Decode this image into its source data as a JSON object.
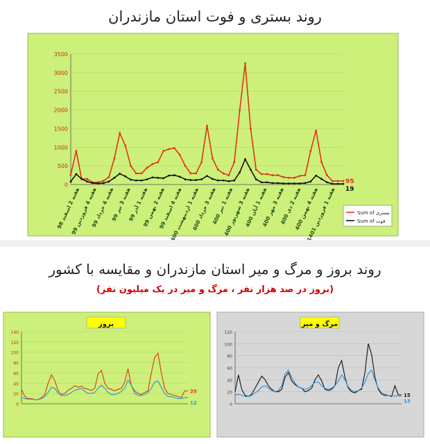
{
  "page": {
    "title": "روند بستری و فوت استان مازندران",
    "section2_title": "روند بروز و مرگ و میر استان مازندران و مقایسه با کشور",
    "section2_subtitle": "(بروز در صد هزار نفر ، مرگ و میر در یک میلیون نفر)"
  },
  "colors": {
    "chart_bg": "#ccf07a",
    "gray_bg": "#d7d7d7",
    "red": "#e0321b",
    "black": "#111111",
    "blue": "#2b8fd6",
    "label_box": "#ffff00"
  },
  "chart_data": [
    {
      "type": "line",
      "ylim": [
        0,
        3500
      ],
      "yticks": [
        0,
        500,
        1000,
        1500,
        2000,
        2500,
        3000,
        3500
      ],
      "xlim": [
        0,
        100
      ],
      "x_tick_labels": [
        "هفته 2 اسفند 98",
        "هفته 4 فروردین 99",
        "هفته 4 خرداد 99",
        "هفته 3 تیر 99",
        "هفته 1 آذر 99",
        "هفته 2 بهمن 99",
        "هفته 4 اسفند 99",
        "هفته 1 اردیبهشت 400",
        "هفته 3 خرداد 400",
        "هفته 1 تیر 400",
        "هفته 3 شهریور 400",
        "هفته 1 آبان 400",
        "هفته 3 مهر 400",
        "هفته 2 دی 400",
        "هفته 4 بهمن 400",
        "هفته 1 فروردین 1401"
      ],
      "end_labels": [
        "95",
        "19"
      ],
      "series": [
        {
          "name": "Sum of بستری",
          "color": "#e0321b",
          "x": [
            0,
            2,
            4,
            6,
            8,
            10,
            12,
            14,
            16,
            18,
            20,
            22,
            24,
            26,
            28,
            30,
            32,
            34,
            36,
            38,
            40,
            42,
            44,
            46,
            48,
            50,
            52,
            54,
            56,
            58,
            60,
            62,
            64,
            66,
            68,
            70,
            72,
            74,
            76,
            78,
            80,
            82,
            84,
            86,
            88,
            90,
            92,
            94,
            96,
            98,
            100
          ],
          "y": [
            260,
            900,
            150,
            150,
            60,
            60,
            100,
            200,
            700,
            1380,
            1050,
            500,
            300,
            300,
            450,
            550,
            600,
            900,
            950,
            980,
            800,
            500,
            300,
            300,
            600,
            1580,
            700,
            400,
            300,
            250,
            600,
            2000,
            3250,
            1500,
            400,
            280,
            280,
            250,
            250,
            200,
            180,
            180,
            230,
            250,
            900,
            1450,
            600,
            250,
            95,
            95,
            95
          ]
        },
        {
          "name": "Sum of فوت",
          "color": "#111111",
          "x": [
            0,
            2,
            4,
            6,
            8,
            10,
            12,
            14,
            16,
            18,
            20,
            22,
            24,
            26,
            28,
            30,
            32,
            34,
            36,
            38,
            40,
            42,
            44,
            46,
            48,
            50,
            52,
            54,
            56,
            58,
            60,
            62,
            64,
            66,
            68,
            70,
            72,
            74,
            76,
            78,
            80,
            82,
            84,
            86,
            88,
            90,
            92,
            94,
            96,
            98,
            100
          ],
          "y": [
            80,
            280,
            150,
            80,
            40,
            30,
            40,
            80,
            180,
            290,
            220,
            130,
            110,
            110,
            140,
            190,
            180,
            170,
            240,
            250,
            210,
            140,
            120,
            120,
            140,
            230,
            150,
            110,
            110,
            90,
            110,
            330,
            680,
            400,
            140,
            60,
            60,
            40,
            40,
            30,
            30,
            30,
            30,
            40,
            80,
            240,
            150,
            60,
            20,
            19,
            19
          ]
        }
      ]
    },
    {
      "type": "line",
      "title": "بروز",
      "ylim": [
        0,
        140
      ],
      "yticks": [
        0,
        20,
        40,
        60,
        80,
        100,
        120,
        140
      ],
      "xlim": [
        0,
        100
      ],
      "end_labels": [
        "25",
        "12"
      ],
      "series": [
        {
          "color": "#e0321b",
          "x": [
            0,
            2,
            4,
            6,
            8,
            10,
            12,
            14,
            16,
            18,
            20,
            22,
            24,
            26,
            28,
            30,
            32,
            34,
            36,
            38,
            40,
            42,
            44,
            46,
            48,
            50,
            52,
            54,
            56,
            58,
            60,
            62,
            64,
            66,
            68,
            70,
            72,
            74,
            76,
            78,
            80,
            82,
            84,
            86,
            88,
            90,
            92,
            94,
            96,
            98,
            100
          ],
          "y": [
            28,
            14,
            10,
            10,
            8,
            8,
            12,
            18,
            40,
            56,
            45,
            25,
            18,
            20,
            26,
            30,
            35,
            32,
            34,
            30,
            28,
            26,
            30,
            58,
            65,
            40,
            30,
            28,
            25,
            28,
            30,
            42,
            68,
            35,
            25,
            20,
            18,
            22,
            25,
            60,
            90,
            98,
            60,
            30,
            20,
            18,
            16,
            14,
            12,
            25,
            25
          ]
        },
        {
          "color": "#2b8fd6",
          "x": [
            0,
            2,
            4,
            6,
            8,
            10,
            12,
            14,
            16,
            18,
            20,
            22,
            24,
            26,
            28,
            30,
            32,
            34,
            36,
            38,
            40,
            42,
            44,
            46,
            48,
            50,
            52,
            54,
            56,
            58,
            60,
            62,
            64,
            66,
            68,
            70,
            72,
            74,
            76,
            78,
            80,
            82,
            84,
            86,
            88,
            90,
            92,
            94,
            96,
            98,
            100
          ],
          "y": [
            12,
            10,
            9,
            9,
            8,
            8,
            10,
            14,
            22,
            32,
            30,
            20,
            16,
            16,
            18,
            22,
            26,
            28,
            30,
            24,
            20,
            20,
            22,
            30,
            36,
            30,
            22,
            18,
            18,
            20,
            24,
            30,
            46,
            36,
            20,
            16,
            16,
            18,
            22,
            30,
            42,
            44,
            32,
            20,
            14,
            14,
            12,
            10,
            10,
            12,
            12
          ]
        }
      ]
    },
    {
      "type": "line",
      "title": "مرگ و میر",
      "ylim": [
        0,
        120
      ],
      "yticks": [
        0,
        20,
        40,
        60,
        80,
        100,
        120
      ],
      "xlim": [
        0,
        100
      ],
      "end_labels": [
        "15",
        "13"
      ],
      "series": [
        {
          "color": "#111111",
          "x": [
            0,
            2,
            4,
            6,
            8,
            10,
            12,
            14,
            16,
            18,
            20,
            22,
            24,
            26,
            28,
            30,
            32,
            34,
            36,
            38,
            40,
            42,
            44,
            46,
            48,
            50,
            52,
            54,
            56,
            58,
            60,
            62,
            64,
            66,
            68,
            70,
            72,
            74,
            76,
            78,
            80,
            82,
            84,
            86,
            88,
            90,
            92,
            94,
            96,
            98,
            100
          ],
          "y": [
            20,
            48,
            24,
            14,
            12,
            16,
            26,
            36,
            46,
            40,
            30,
            24,
            20,
            20,
            24,
            44,
            52,
            38,
            32,
            28,
            26,
            20,
            22,
            26,
            40,
            48,
            38,
            24,
            22,
            24,
            30,
            60,
            72,
            44,
            26,
            20,
            18,
            22,
            24,
            52,
            100,
            82,
            44,
            24,
            16,
            14,
            14,
            12,
            30,
            15,
            15
          ]
        },
        {
          "color": "#2b8fd6",
          "x": [
            0,
            2,
            4,
            6,
            8,
            10,
            12,
            14,
            16,
            18,
            20,
            22,
            24,
            26,
            28,
            30,
            32,
            34,
            36,
            38,
            40,
            42,
            44,
            46,
            48,
            50,
            52,
            54,
            56,
            58,
            60,
            62,
            64,
            66,
            68,
            70,
            72,
            74,
            76,
            78,
            80,
            82,
            84,
            86,
            88,
            90,
            92,
            94,
            96,
            98,
            100
          ],
          "y": [
            14,
            16,
            14,
            12,
            12,
            14,
            18,
            22,
            28,
            30,
            26,
            22,
            20,
            22,
            30,
            50,
            56,
            44,
            34,
            28,
            26,
            24,
            26,
            30,
            36,
            36,
            30,
            26,
            24,
            26,
            30,
            38,
            48,
            40,
            28,
            22,
            20,
            22,
            26,
            36,
            50,
            56,
            40,
            26,
            18,
            16,
            14,
            13,
            13,
            13,
            13
          ]
        }
      ]
    }
  ]
}
